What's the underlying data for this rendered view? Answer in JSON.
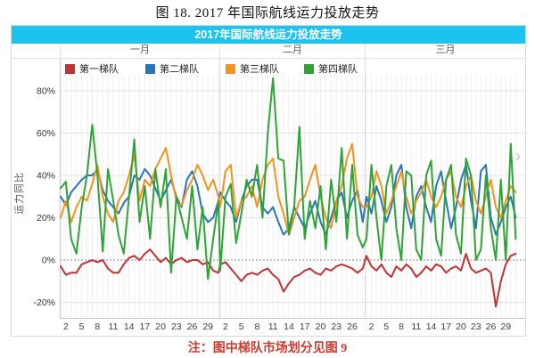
{
  "figure": {
    "caption": "图 18. 2017 年国际航线运力投放走势"
  },
  "note": {
    "text": "注：图中梯队市场划分见图 9"
  },
  "icons": {
    "scroll_right": "›"
  },
  "chart_data": {
    "type": "line",
    "title": "2017年国际航线运力投放走势",
    "header_bg": "#1cc3ee",
    "ylabel": "运力同比",
    "ylim": [
      -30,
      95
    ],
    "grid": "on",
    "legend_position": "top",
    "y_ticks": [
      {
        "value": 80,
        "label": "80%"
      },
      {
        "value": 60,
        "label": "60%"
      },
      {
        "value": 40,
        "label": "40%"
      },
      {
        "value": 20,
        "label": "20%"
      },
      {
        "value": 0,
        "label": "0%"
      },
      {
        "value": -20,
        "label": "-20%"
      }
    ],
    "months": [
      {
        "label": "一月",
        "days": 31,
        "ticks": [
          "2",
          "5",
          "8",
          "11",
          "14",
          "17",
          "20",
          "23",
          "26",
          "29"
        ]
      },
      {
        "label": "二月",
        "days": 28,
        "ticks": [
          "2",
          "5",
          "8",
          "11",
          "14",
          "17",
          "20",
          "23",
          "26"
        ]
      },
      {
        "label": "三月",
        "days": 31,
        "ticks": [
          "2",
          "5",
          "8",
          "11",
          "14",
          "17",
          "20",
          "23",
          "26",
          "29"
        ]
      }
    ],
    "x_unit": "day of month",
    "series": [
      {
        "name": "第一梯队",
        "color": "#be3333",
        "values": [
          -3,
          -7,
          -6,
          -6,
          -2,
          -1,
          0,
          -1,
          0,
          -4,
          -6,
          -6,
          -2,
          1,
          2,
          0,
          3,
          5,
          2,
          -1,
          1,
          -2,
          0,
          1,
          -1,
          0,
          0,
          -2,
          -1,
          -5,
          -6,
          -2,
          -1,
          -4,
          -7,
          -10,
          -7,
          -6,
          -7,
          -5,
          -4,
          -7,
          -9,
          -15,
          -11,
          -8,
          -7,
          -5,
          -4,
          -6,
          -7,
          -4,
          -5,
          -3,
          -2,
          -3,
          -4,
          -6,
          -4,
          2,
          -3,
          -5,
          -2,
          -6,
          -8,
          -3,
          -5,
          -2,
          -4,
          -8,
          -6,
          -3,
          -5,
          -2,
          -3,
          -6,
          -4,
          -3,
          -5,
          3,
          -4,
          -6,
          -5,
          -4,
          -6,
          -22,
          -10,
          -2,
          2,
          3
        ]
      },
      {
        "name": "第二梯队",
        "color": "#2876b8",
        "values": [
          30,
          26,
          32,
          35,
          38,
          40,
          40,
          43,
          33,
          28,
          25,
          22,
          27,
          30,
          40,
          38,
          43,
          40,
          34,
          28,
          33,
          38,
          30,
          25,
          38,
          42,
          35,
          22,
          18,
          20,
          28,
          32,
          28,
          25,
          18,
          28,
          35,
          38,
          38,
          25,
          22,
          25,
          18,
          12,
          15,
          25,
          20,
          15,
          22,
          28,
          18,
          12,
          20,
          28,
          32,
          20,
          28,
          33,
          18,
          30,
          22,
          35,
          28,
          18,
          25,
          40,
          45,
          25,
          15,
          30,
          35,
          25,
          18,
          35,
          42,
          28,
          15,
          25,
          38,
          45,
          28,
          15,
          42,
          45,
          20,
          12,
          18,
          25,
          30,
          20
        ]
      },
      {
        "name": "第三梯队",
        "color": "#f0941e",
        "values": [
          20,
          28,
          18,
          25,
          30,
          28,
          36,
          45,
          30,
          22,
          18,
          28,
          32,
          40,
          50,
          28,
          38,
          35,
          43,
          48,
          53,
          40,
          28,
          26,
          33,
          38,
          45,
          40,
          33,
          38,
          30,
          25,
          42,
          45,
          20,
          28,
          30,
          35,
          25,
          38,
          45,
          48,
          30,
          22,
          12,
          20,
          28,
          30,
          38,
          45,
          30,
          20,
          15,
          28,
          35,
          48,
          55,
          30,
          25,
          25,
          30,
          42,
          35,
          22,
          28,
          35,
          42,
          30,
          22,
          28,
          32,
          38,
          30,
          25,
          30,
          38,
          42,
          30,
          25,
          35,
          40,
          28,
          22,
          30,
          38,
          25,
          20,
          28,
          35,
          32
        ]
      },
      {
        "name": "第四梯队",
        "color": "#2fa338",
        "values": [
          34,
          37,
          10,
          3,
          25,
          40,
          64,
          40,
          4,
          43,
          28,
          12,
          3,
          30,
          57,
          18,
          35,
          10,
          43,
          25,
          43,
          -6,
          30,
          20,
          10,
          35,
          5,
          25,
          -9,
          10,
          28,
          -5,
          30,
          36,
          8,
          22,
          38,
          30,
          45,
          20,
          60,
          86,
          48,
          47,
          12,
          25,
          63,
          10,
          28,
          15,
          35,
          5,
          38,
          18,
          53,
          10,
          45,
          12,
          6,
          10,
          45,
          20,
          0,
          35,
          45,
          15,
          0,
          42,
          40,
          5,
          0,
          40,
          47,
          10,
          2,
          38,
          45,
          12,
          3,
          48,
          40,
          0,
          5,
          40,
          15,
          0,
          38,
          0,
          55,
          10
        ]
      }
    ]
  }
}
